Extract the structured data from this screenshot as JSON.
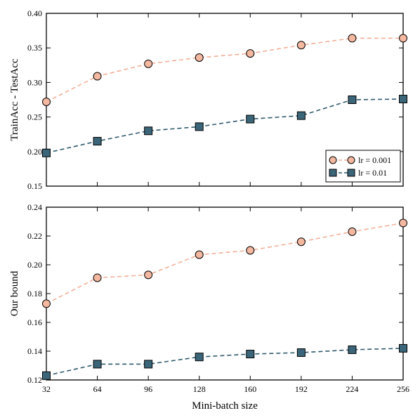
{
  "chart_data": [
    {
      "type": "line",
      "ylabel": "TrainAcc - TestAcc",
      "xlabel": "",
      "x": [
        32,
        64,
        96,
        128,
        160,
        192,
        224,
        256
      ],
      "xlim": [
        32,
        256
      ],
      "ylim": [
        0.15,
        0.4
      ],
      "yticks": [
        "0.15",
        "0.20",
        "0.25",
        "0.30",
        "0.35",
        "0.40"
      ],
      "legend_position": "lower-right",
      "series": [
        {
          "name": "lr = 0.001",
          "marker": "circle",
          "color": "#f4b8a0",
          "line_color": "#f2b098",
          "values": [
            0.272,
            0.309,
            0.327,
            0.336,
            0.342,
            0.354,
            0.364,
            0.364
          ]
        },
        {
          "name": "lr = 0.01",
          "marker": "square",
          "color": "#3b6578",
          "line_color": "#2f5a6c",
          "values": [
            0.198,
            0.215,
            0.23,
            0.236,
            0.247,
            0.252,
            0.275,
            0.276
          ]
        }
      ]
    },
    {
      "type": "line",
      "ylabel": "Our bound",
      "xlabel": "Mini-batch size",
      "x": [
        32,
        64,
        96,
        128,
        160,
        192,
        224,
        256
      ],
      "xticks": [
        "32",
        "64",
        "96",
        "128",
        "160",
        "192",
        "224",
        "256"
      ],
      "xlim": [
        32,
        256
      ],
      "ylim": [
        0.12,
        0.24
      ],
      "yticks": [
        "0.12",
        "0.14",
        "0.16",
        "0.18",
        "0.20",
        "0.22",
        "0.24"
      ],
      "series": [
        {
          "marker": "circle",
          "color": "#f4b8a0",
          "line_color": "#f2b098",
          "values": [
            0.173,
            0.191,
            0.193,
            0.207,
            0.21,
            0.216,
            0.223,
            0.229
          ]
        },
        {
          "marker": "square",
          "color": "#3b6578",
          "line_color": "#2f5a6c",
          "values": [
            0.123,
            0.131,
            0.131,
            0.136,
            0.138,
            0.139,
            0.141,
            0.142
          ]
        }
      ]
    }
  ]
}
